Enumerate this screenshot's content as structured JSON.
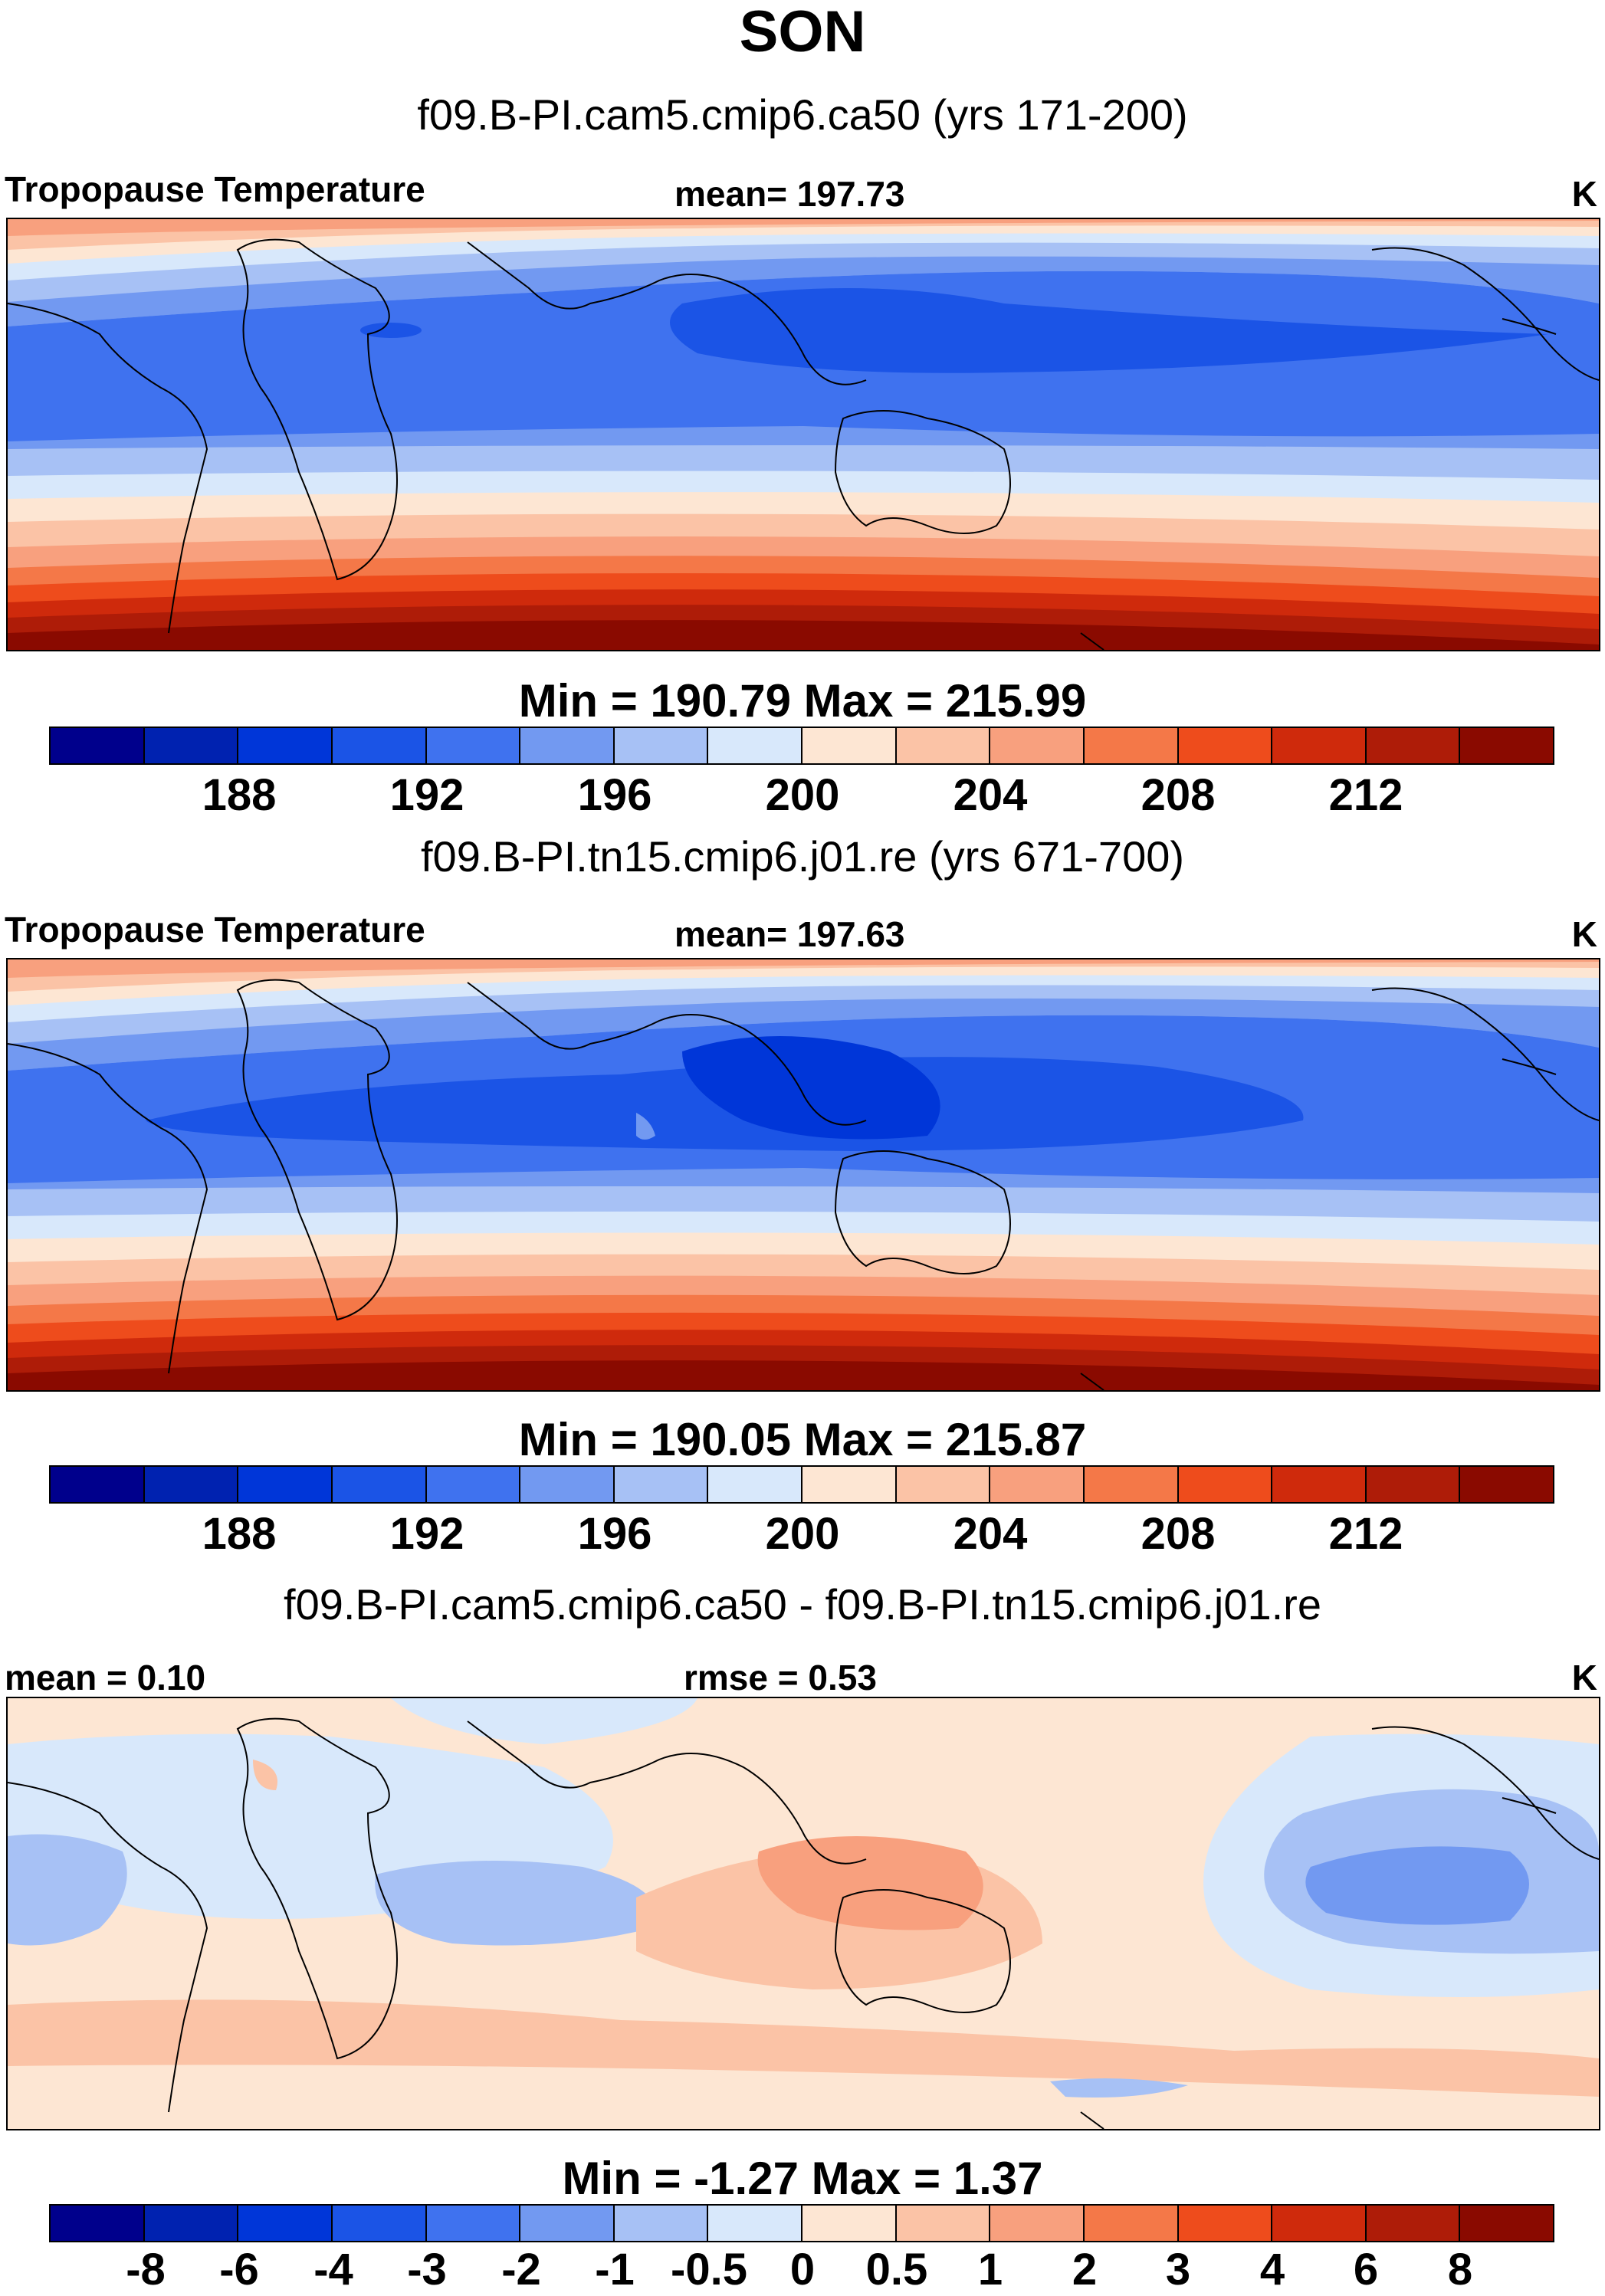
{
  "title": "SON",
  "panels": [
    {
      "case": "f09.B-PI.cam5.cmip6.ca50 (yrs 171-200)",
      "left_label": "Tropopause Temperature",
      "mid_label": "mean= 197.73",
      "units": "K",
      "minmax": "Min = 190.79 Max = 215.99",
      "ticks": [
        "188",
        "192",
        "196",
        "200",
        "204",
        "208",
        "212"
      ]
    },
    {
      "case": "f09.B-PI.tn15.cmip6.j01.re (yrs 671-700)",
      "left_label": "Tropopause Temperature",
      "mid_label": "mean= 197.63",
      "units": "K",
      "minmax": "Min = 190.05 Max = 215.87",
      "ticks": [
        "188",
        "192",
        "196",
        "200",
        "204",
        "208",
        "212"
      ]
    },
    {
      "case": "f09.B-PI.cam5.cmip6.ca50 - f09.B-PI.tn15.cmip6.j01.re",
      "left_label": "mean =   0.10",
      "mid_label": "rmse =   0.53",
      "units": "K",
      "minmax": "Min =  -1.27 Max =   1.37",
      "ticks": [
        "-8",
        "-6",
        "-4",
        "-3",
        "-2",
        "-1",
        "-0.5",
        "0",
        "0.5",
        "1",
        "2",
        "3",
        "4",
        "6",
        "8"
      ]
    }
  ],
  "colorbar_colors": [
    "#00008c",
    "#0022b0",
    "#0036d8",
    "#1b54e6",
    "#3f72ef",
    "#7299f1",
    "#a7c1f5",
    "#d8e8fb",
    "#fde6d3",
    "#fbc3a6",
    "#f8a07e",
    "#f47848",
    "#ee4c1c",
    "#cf2a0c",
    "#ae1c08",
    "#8a0a00"
  ],
  "diff_colors": {
    "deepblue": "#7299f1",
    "blue": "#a7c1f5",
    "lightblue": "#d8e8fb",
    "lightred": "#fde6d3",
    "red": "#fbc3a6",
    "deepred": "#f8a07e"
  }
}
